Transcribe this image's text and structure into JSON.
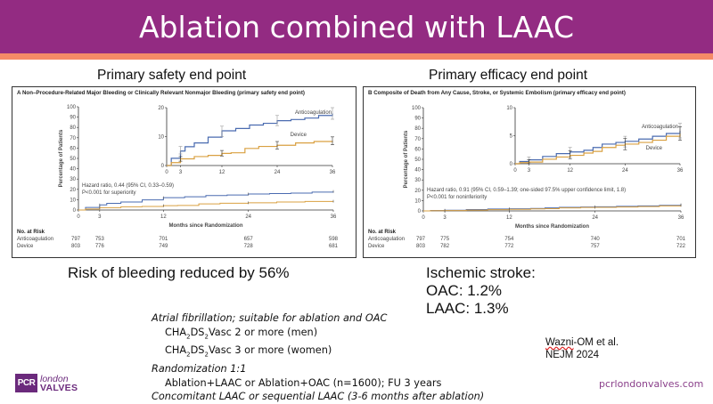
{
  "slide": {
    "title": "Ablation combined with LAAC",
    "left_section_title": "Primary safety end point",
    "right_section_title": "Primary efficacy end point",
    "left_summary": "Risk of bleeding reduced by 56%",
    "right_summary": [
      "Ischemic stroke:",
      "OAC: 1.2%",
      "LAAC: 1.3%"
    ],
    "notes": {
      "line1": "Atrial fibrillation; suitable for ablation and OAC",
      "line2_pre": "CHA",
      "line2_sub1": "2",
      "line2_mid": "DS",
      "line2_sub2": "2",
      "line2_post": "Vasc 2 or more (men)",
      "line3_pre": "CHA",
      "line3_sub1": "2",
      "line3_mid": "DS",
      "line3_sub2": "2",
      "line3_post": "Vasc 3 or more (women)",
      "line4": "Randomization 1:1",
      "line5": "Ablation+LAAC or Ablation+OAC (n=1600); FU 3 years",
      "line6": "Concomitant LAAC or sequential LAAC (3-6 months after ablation)"
    },
    "citation": [
      "Wazni-OM et al.",
      "NEJM 2024"
    ],
    "citation_underlined": "Wazni",
    "citation_rest": "-OM et al.",
    "website": "pcrlondonvalves.com",
    "logo": {
      "badge": "PCR",
      "line1": "london",
      "line2": "VALVES"
    },
    "colors": {
      "header": "#932b82",
      "accent": "#f58a67",
      "anticoagulation": "#4a6bb0",
      "device": "#d9a041",
      "brand": "#6b2a7c"
    }
  },
  "chart_data": [
    {
      "type": "line",
      "panel": "A",
      "title": "A  Non–Procedure-Related Major Bleeding or Clinically Relevant Nonmajor Bleeding (primary safety end point)",
      "xlabel": "Months since Randomization",
      "ylabel": "Percentage of Patients",
      "xlim": [
        0,
        36
      ],
      "ylim": [
        0,
        100
      ],
      "xticks": [
        0,
        3,
        12,
        24,
        36
      ],
      "yticks": [
        0,
        10,
        20,
        30,
        40,
        50,
        60,
        70,
        80,
        90,
        100
      ],
      "annotation": [
        "Hazard ratio, 0.44 (95% CI, 0.33–0.59)",
        "P<0.001 for superiority"
      ],
      "series": [
        {
          "name": "Anticoagulation",
          "x": [
            0,
            1,
            3,
            4,
            6,
            9,
            12,
            15,
            18,
            21,
            24,
            27,
            30,
            33,
            36
          ],
          "y": [
            0,
            2.5,
            5,
            6.5,
            7.8,
            9.8,
            12,
            12.8,
            14,
            14.6,
            15.5,
            15.9,
            16.4,
            17.3,
            18
          ],
          "ci_x": [
            3,
            12,
            24,
            36
          ],
          "ci_low": [
            4,
            10,
            13.8,
            16
          ],
          "ci_high": [
            6.6,
            13.6,
            17.3,
            20
          ]
        },
        {
          "name": "Device",
          "x": [
            0,
            1,
            3,
            6,
            9,
            12,
            14,
            17,
            20,
            24,
            28,
            32,
            36
          ],
          "y": [
            0,
            1,
            2.3,
            3.1,
            3.5,
            4.2,
            4.4,
            5.9,
            6.6,
            7,
            7.8,
            8.3,
            8.5
          ],
          "ci_x": [
            3,
            12,
            24,
            36
          ],
          "ci_low": [
            1.5,
            3.3,
            5.7,
            7.2
          ],
          "ci_high": [
            3.1,
            5.2,
            8.3,
            9.9
          ]
        }
      ],
      "inset": {
        "ylim": [
          0,
          20
        ],
        "yticks": [
          0,
          10,
          20
        ],
        "xticks": [
          0,
          3,
          12,
          24,
          36
        ]
      },
      "at_risk": {
        "title": "No. at Risk",
        "columns": [
          0,
          3,
          12,
          24,
          36
        ],
        "rows": [
          {
            "label": "Anticoagulation",
            "values": [
              "797",
              "753",
              "701",
              "657",
              "598"
            ]
          },
          {
            "label": "Device",
            "values": [
              "803",
              "776",
              "749",
              "728",
              "681"
            ]
          }
        ]
      }
    },
    {
      "type": "line",
      "panel": "B",
      "title": "B  Composite of Death from Any Cause, Stroke, or Systemic Embolism (primary efficacy end point)",
      "xlabel": "Months since Randomization",
      "ylabel": "Percentage of Patients",
      "xlim": [
        0,
        36
      ],
      "ylim": [
        0,
        100
      ],
      "xticks": [
        0,
        3,
        12,
        24,
        36
      ],
      "yticks": [
        0,
        10,
        20,
        30,
        40,
        50,
        60,
        70,
        80,
        90,
        100
      ],
      "annotation": [
        "Hazard ratio, 0.91 (95% CI, 0.59–1.39; one-sided 97.5% upper confidence limit, 1.8)",
        "P<0.001 for noninferiority"
      ],
      "series": [
        {
          "name": "Anticoagulation",
          "x": [
            0,
            1,
            3,
            6,
            9,
            12,
            15,
            17,
            19,
            22,
            24,
            27,
            30,
            33,
            36
          ],
          "y": [
            0,
            0.4,
            0.7,
            1.3,
            1.8,
            2.1,
            2.4,
            2.9,
            3.5,
            3.8,
            4.0,
            4.4,
            4.9,
            5.4,
            5.9
          ],
          "ci_x": [
            3,
            12,
            24,
            36
          ],
          "ci_low": [
            0.2,
            1.2,
            3.0,
            4.6
          ],
          "ci_high": [
            1.2,
            2.9,
            4.9,
            7.2
          ]
        },
        {
          "name": "Device",
          "x": [
            0,
            1,
            3,
            6,
            9,
            12,
            15,
            17,
            19,
            22,
            24,
            27,
            30,
            33,
            36
          ],
          "y": [
            0,
            0.2,
            0.3,
            0.8,
            1.2,
            1.5,
            1.9,
            2.2,
            2.9,
            3.3,
            3.5,
            3.8,
            4.2,
            4.9,
            5.4
          ],
          "ci_x": [
            3,
            12,
            24,
            36
          ],
          "ci_low": [
            0.0,
            0.9,
            2.5,
            4.2
          ],
          "ci_high": [
            0.7,
            2.3,
            4.5,
            6.6
          ]
        }
      ],
      "inset": {
        "ylim": [
          0,
          10
        ],
        "yticks": [
          0,
          5,
          10
        ],
        "xticks": [
          0,
          3,
          12,
          24,
          36
        ]
      },
      "at_risk": {
        "title": "No. at Risk",
        "columns": [
          0,
          3,
          12,
          24,
          36
        ],
        "rows": [
          {
            "label": "Anticoagulation",
            "values": [
              "797",
              "775",
              "754",
              "740",
              "701"
            ]
          },
          {
            "label": "Device",
            "values": [
              "803",
              "782",
              "772",
              "757",
              "722"
            ]
          }
        ]
      }
    }
  ]
}
